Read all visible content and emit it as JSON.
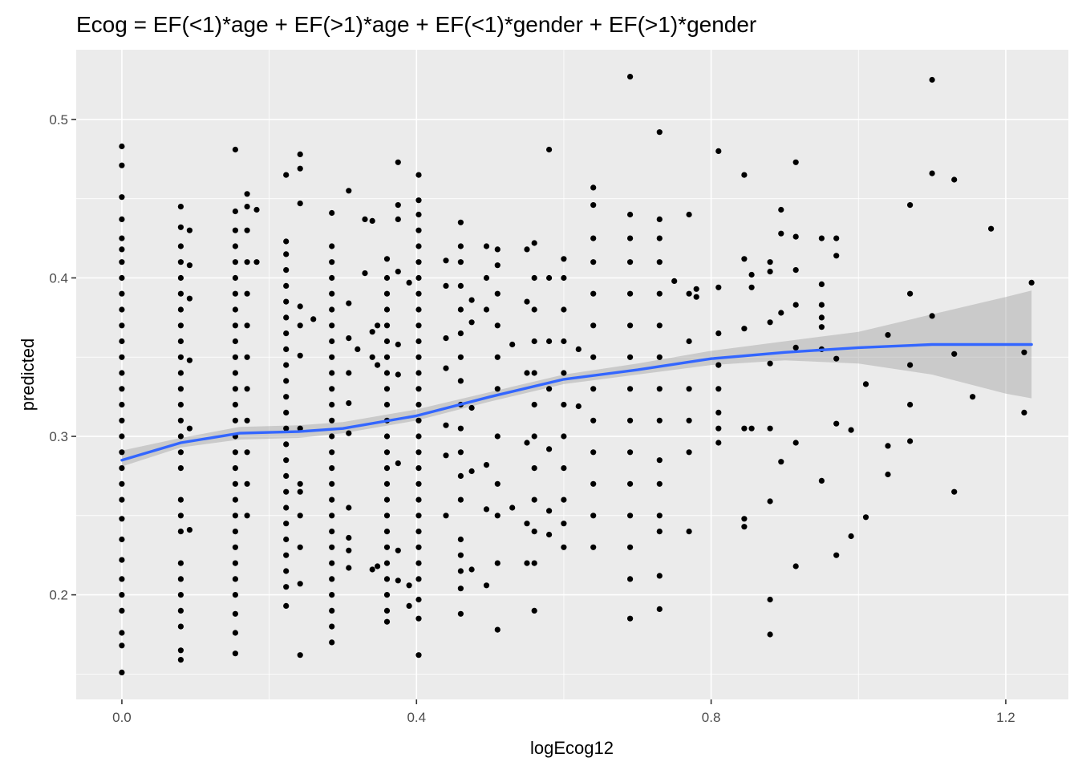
{
  "chart_data": {
    "type": "scatter",
    "title": "Ecog =  EF(<1)*age + EF(>1)*age + EF(<1)*gender + EF(>1)*gender",
    "xlabel": "logEcog12",
    "ylabel": "predicted",
    "xlim": [
      -0.062,
      1.285
    ],
    "ylim": [
      0.134,
      0.544
    ],
    "x_ticks": [
      0.0,
      0.4,
      0.8,
      1.2
    ],
    "x_tick_labels": [
      "0.0",
      "0.4",
      "0.8",
      "1.2"
    ],
    "y_ticks": [
      0.2,
      0.3,
      0.4,
      0.5
    ],
    "y_tick_labels": [
      "0.2",
      "0.3",
      "0.4",
      "0.5"
    ],
    "grid": true,
    "legend": "none",
    "colors": {
      "panel_background": "#ebebeb",
      "grid_major": "#ffffff",
      "points": "#000000",
      "smooth_line": "#3366ff",
      "confidence_band": "#999999"
    },
    "point_columns": [
      {
        "x": 0.0,
        "y": [
          0.151,
          0.168,
          0.176,
          0.19,
          0.2,
          0.21,
          0.222,
          0.235,
          0.248,
          0.26,
          0.27,
          0.28,
          0.29,
          0.3,
          0.31,
          0.32,
          0.33,
          0.34,
          0.35,
          0.36,
          0.37,
          0.38,
          0.39,
          0.4,
          0.41,
          0.418,
          0.425,
          0.437,
          0.451,
          0.471,
          0.483
        ]
      },
      {
        "x": 0.08,
        "y": [
          0.159,
          0.165,
          0.18,
          0.19,
          0.2,
          0.21,
          0.22,
          0.24,
          0.25,
          0.26,
          0.28,
          0.29,
          0.3,
          0.31,
          0.32,
          0.33,
          0.34,
          0.35,
          0.36,
          0.37,
          0.38,
          0.39,
          0.4,
          0.41,
          0.42,
          0.432,
          0.445
        ]
      },
      {
        "x": 0.092,
        "y": [
          0.241,
          0.305,
          0.348,
          0.387,
          0.408,
          0.43
        ]
      },
      {
        "x": 0.154,
        "y": [
          0.163,
          0.176,
          0.188,
          0.2,
          0.21,
          0.22,
          0.23,
          0.24,
          0.25,
          0.26,
          0.27,
          0.28,
          0.29,
          0.3,
          0.31,
          0.32,
          0.33,
          0.34,
          0.35,
          0.36,
          0.37,
          0.38,
          0.39,
          0.4,
          0.41,
          0.42,
          0.43,
          0.442,
          0.481
        ]
      },
      {
        "x": 0.17,
        "y": [
          0.25,
          0.27,
          0.29,
          0.31,
          0.33,
          0.35,
          0.37,
          0.39,
          0.41,
          0.43,
          0.445,
          0.453
        ]
      },
      {
        "x": 0.183,
        "y": [
          0.41,
          0.443
        ]
      },
      {
        "x": 0.223,
        "y": [
          0.193,
          0.205,
          0.215,
          0.225,
          0.235,
          0.245,
          0.255,
          0.265,
          0.275,
          0.285,
          0.295,
          0.305,
          0.315,
          0.325,
          0.335,
          0.345,
          0.355,
          0.365,
          0.375,
          0.385,
          0.395,
          0.405,
          0.415,
          0.423,
          0.465
        ]
      },
      {
        "x": 0.242,
        "y": [
          0.162,
          0.207,
          0.23,
          0.25,
          0.265,
          0.27,
          0.305,
          0.351,
          0.37,
          0.382,
          0.447,
          0.469,
          0.478
        ]
      },
      {
        "x": 0.26,
        "y": [
          0.374
        ]
      },
      {
        "x": 0.285,
        "y": [
          0.17,
          0.18,
          0.19,
          0.2,
          0.21,
          0.22,
          0.23,
          0.24,
          0.25,
          0.26,
          0.27,
          0.28,
          0.29,
          0.3,
          0.31,
          0.32,
          0.33,
          0.34,
          0.35,
          0.36,
          0.37,
          0.38,
          0.39,
          0.4,
          0.41,
          0.42,
          0.441
        ]
      },
      {
        "x": 0.308,
        "y": [
          0.217,
          0.228,
          0.236,
          0.255,
          0.302,
          0.321,
          0.34,
          0.362,
          0.384,
          0.455
        ]
      },
      {
        "x": 0.32,
        "y": [
          0.355
        ]
      },
      {
        "x": 0.33,
        "y": [
          0.403,
          0.437
        ]
      },
      {
        "x": 0.34,
        "y": [
          0.216,
          0.35,
          0.366,
          0.436
        ]
      },
      {
        "x": 0.347,
        "y": [
          0.218,
          0.345,
          0.37
        ]
      },
      {
        "x": 0.36,
        "y": [
          0.183,
          0.19,
          0.2,
          0.21,
          0.22,
          0.23,
          0.24,
          0.25,
          0.26,
          0.27,
          0.28,
          0.29,
          0.3,
          0.31,
          0.32,
          0.33,
          0.34,
          0.35,
          0.36,
          0.37,
          0.38,
          0.39,
          0.4,
          0.412
        ]
      },
      {
        "x": 0.375,
        "y": [
          0.209,
          0.228,
          0.283,
          0.339,
          0.358,
          0.404,
          0.437,
          0.446,
          0.473
        ]
      },
      {
        "x": 0.39,
        "y": [
          0.193,
          0.206,
          0.397
        ]
      },
      {
        "x": 0.403,
        "y": [
          0.162,
          0.185,
          0.197,
          0.21,
          0.22,
          0.23,
          0.24,
          0.25,
          0.26,
          0.27,
          0.28,
          0.29,
          0.3,
          0.31,
          0.32,
          0.33,
          0.34,
          0.35,
          0.36,
          0.37,
          0.38,
          0.39,
          0.4,
          0.41,
          0.42,
          0.43,
          0.44,
          0.449,
          0.465
        ]
      },
      {
        "x": 0.44,
        "y": [
          0.25,
          0.288,
          0.307,
          0.343,
          0.362,
          0.395,
          0.411
        ]
      },
      {
        "x": 0.46,
        "y": [
          0.188,
          0.204,
          0.215,
          0.225,
          0.235,
          0.26,
          0.275,
          0.29,
          0.305,
          0.32,
          0.335,
          0.35,
          0.365,
          0.38,
          0.395,
          0.41,
          0.42,
          0.435
        ]
      },
      {
        "x": 0.475,
        "y": [
          0.216,
          0.278,
          0.318,
          0.372,
          0.386
        ]
      },
      {
        "x": 0.495,
        "y": [
          0.206,
          0.254,
          0.282,
          0.38,
          0.4,
          0.42
        ]
      },
      {
        "x": 0.51,
        "y": [
          0.178,
          0.22,
          0.25,
          0.27,
          0.3,
          0.33,
          0.35,
          0.37,
          0.39,
          0.408,
          0.418
        ]
      },
      {
        "x": 0.53,
        "y": [
          0.255,
          0.358
        ]
      },
      {
        "x": 0.55,
        "y": [
          0.22,
          0.245,
          0.296,
          0.34,
          0.385,
          0.418
        ]
      },
      {
        "x": 0.56,
        "y": [
          0.19,
          0.22,
          0.24,
          0.26,
          0.28,
          0.3,
          0.32,
          0.34,
          0.36,
          0.38,
          0.4,
          0.422
        ]
      },
      {
        "x": 0.58,
        "y": [
          0.238,
          0.253,
          0.292,
          0.33,
          0.36,
          0.4,
          0.481
        ]
      },
      {
        "x": 0.6,
        "y": [
          0.23,
          0.245,
          0.26,
          0.28,
          0.3,
          0.32,
          0.34,
          0.36,
          0.38,
          0.4,
          0.412
        ]
      },
      {
        "x": 0.62,
        "y": [
          0.319,
          0.355
        ]
      },
      {
        "x": 0.64,
        "y": [
          0.23,
          0.25,
          0.27,
          0.29,
          0.31,
          0.33,
          0.35,
          0.37,
          0.39,
          0.41,
          0.425,
          0.446,
          0.457
        ]
      },
      {
        "x": 0.69,
        "y": [
          0.185,
          0.21,
          0.23,
          0.25,
          0.27,
          0.29,
          0.31,
          0.33,
          0.35,
          0.37,
          0.39,
          0.41,
          0.425,
          0.44,
          0.527
        ]
      },
      {
        "x": 0.73,
        "y": [
          0.191,
          0.212,
          0.24,
          0.25,
          0.27,
          0.285,
          0.31,
          0.33,
          0.35,
          0.37,
          0.39,
          0.41,
          0.425,
          0.437,
          0.492
        ]
      },
      {
        "x": 0.75,
        "y": [
          0.398
        ]
      },
      {
        "x": 0.77,
        "y": [
          0.24,
          0.29,
          0.31,
          0.33,
          0.36,
          0.39,
          0.44
        ]
      },
      {
        "x": 0.78,
        "y": [
          0.388,
          0.393
        ]
      },
      {
        "x": 0.81,
        "y": [
          0.296,
          0.305,
          0.315,
          0.33,
          0.345,
          0.365,
          0.394,
          0.48
        ]
      },
      {
        "x": 0.845,
        "y": [
          0.243,
          0.248,
          0.305,
          0.368,
          0.412,
          0.465
        ]
      },
      {
        "x": 0.855,
        "y": [
          0.305,
          0.394,
          0.402
        ]
      },
      {
        "x": 0.88,
        "y": [
          0.175,
          0.197,
          0.259,
          0.305,
          0.346,
          0.372,
          0.404,
          0.41
        ]
      },
      {
        "x": 0.895,
        "y": [
          0.284,
          0.378,
          0.428,
          0.443
        ]
      },
      {
        "x": 0.915,
        "y": [
          0.218,
          0.296,
          0.356,
          0.383,
          0.405,
          0.426,
          0.473
        ]
      },
      {
        "x": 0.95,
        "y": [
          0.272,
          0.355,
          0.369,
          0.375,
          0.383,
          0.396,
          0.425
        ]
      },
      {
        "x": 0.97,
        "y": [
          0.225,
          0.308,
          0.349,
          0.414,
          0.425
        ]
      },
      {
        "x": 0.99,
        "y": [
          0.237,
          0.304
        ]
      },
      {
        "x": 1.01,
        "y": [
          0.249,
          0.333
        ]
      },
      {
        "x": 1.04,
        "y": [
          0.276,
          0.294,
          0.364
        ]
      },
      {
        "x": 1.07,
        "y": [
          0.297,
          0.32,
          0.345,
          0.39,
          0.446
        ]
      },
      {
        "x": 1.1,
        "y": [
          0.376,
          0.466,
          0.525
        ]
      },
      {
        "x": 1.13,
        "y": [
          0.265,
          0.352,
          0.462
        ]
      },
      {
        "x": 1.155,
        "y": [
          0.325
        ]
      },
      {
        "x": 1.18,
        "y": [
          0.431
        ]
      },
      {
        "x": 1.225,
        "y": [
          0.315,
          0.353
        ]
      },
      {
        "x": 1.235,
        "y": [
          0.397
        ]
      }
    ],
    "smooth_fit": {
      "x": [
        0.0,
        0.08,
        0.16,
        0.24,
        0.3,
        0.4,
        0.5,
        0.6,
        0.7,
        0.8,
        0.9,
        1.0,
        1.1,
        1.2,
        1.235
      ],
      "y": [
        0.285,
        0.296,
        0.302,
        0.303,
        0.305,
        0.313,
        0.325,
        0.336,
        0.342,
        0.349,
        0.353,
        0.356,
        0.358,
        0.358,
        0.358
      ],
      "ci_lower": [
        0.281,
        0.293,
        0.298,
        0.299,
        0.302,
        0.31,
        0.322,
        0.333,
        0.339,
        0.345,
        0.348,
        0.346,
        0.339,
        0.327,
        0.324
      ],
      "ci_upper": [
        0.291,
        0.299,
        0.306,
        0.307,
        0.309,
        0.317,
        0.328,
        0.339,
        0.346,
        0.354,
        0.36,
        0.366,
        0.377,
        0.388,
        0.392
      ]
    }
  }
}
